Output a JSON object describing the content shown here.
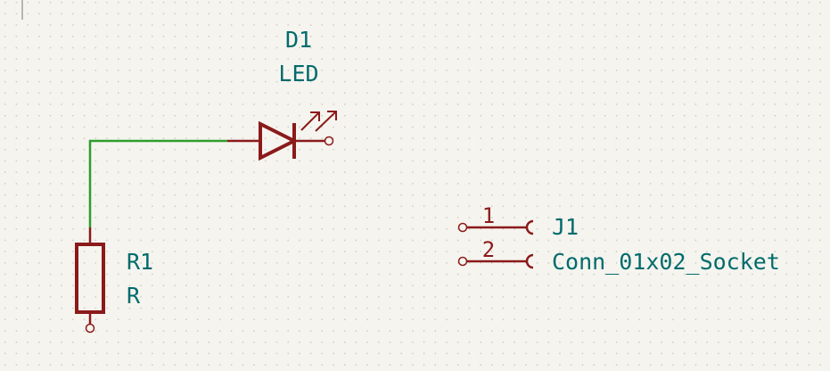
{
  "schematic": {
    "colors": {
      "background": "#f5f4ef",
      "grid_dot": "#c7c6c0",
      "symbol": "#8b1a1a",
      "wire": "#2e9e2e",
      "field_text": "#006b6b"
    },
    "components": {
      "d1": {
        "reference": "D1",
        "value": "LED",
        "symbol": "led-diode-icon"
      },
      "r1": {
        "reference": "R1",
        "value": "R",
        "symbol": "resistor-icon"
      },
      "j1": {
        "reference": "J1",
        "value": "Conn_01x02_Socket",
        "symbol": "socket-connector-icon",
        "pins": [
          {
            "number": "1"
          },
          {
            "number": "2"
          }
        ]
      }
    },
    "wires": [
      {
        "name": "wire-r1-to-d1",
        "connects": [
          "R1",
          "D1"
        ]
      }
    ]
  }
}
